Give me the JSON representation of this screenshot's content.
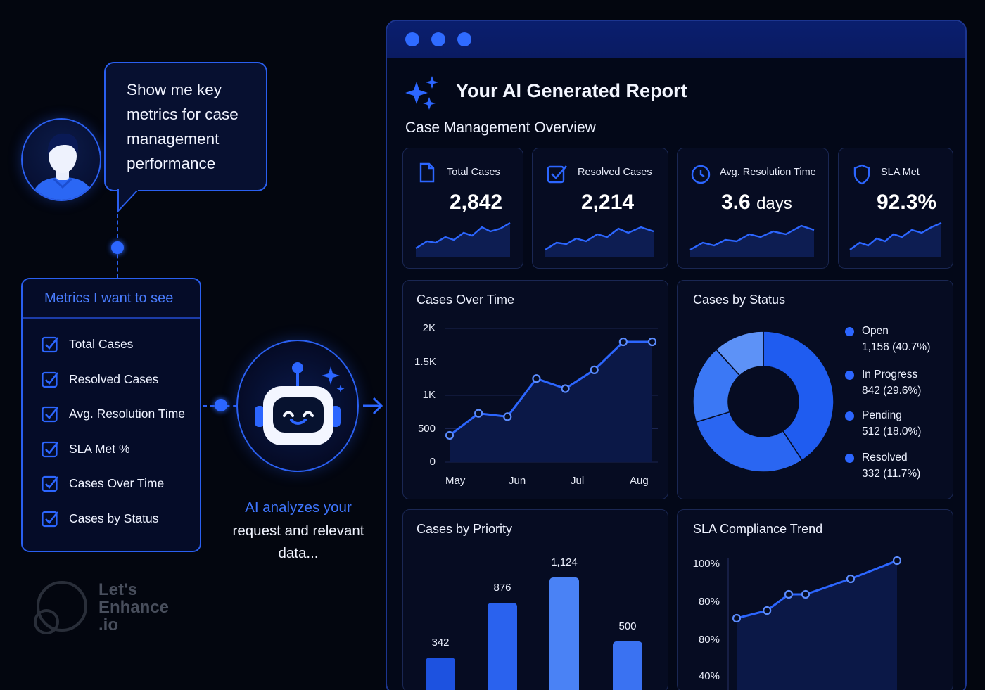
{
  "prompt": {
    "lines": [
      "Show me key",
      "metrics for case",
      "management",
      "performance"
    ]
  },
  "metrics_box": {
    "title": "Metrics I want to see",
    "items": [
      "Total Cases",
      "Resolved Cases",
      "Avg. Resolution Time",
      "SLA Met %",
      "Cases Over Time",
      "Cases by Status"
    ]
  },
  "ai": {
    "highlight": "AI analyzes your",
    "rest_1": "request and relevant",
    "rest_2": "data..."
  },
  "watermark": {
    "line1": "Let's",
    "line2": "Enhance",
    "line3": ".io"
  },
  "report": {
    "title": "Your AI Generated Report",
    "subtitle": "Case Management Overview",
    "kpis": [
      {
        "label": "Total Cases",
        "value": "2,842",
        "unit": "",
        "icon": "document-icon"
      },
      {
        "label": "Resolved Cases",
        "value": "2,214",
        "unit": "",
        "icon": "checkbox-icon"
      },
      {
        "label": "Avg. Resolution Time",
        "value": "3.6",
        "unit": "days",
        "icon": "clock-icon"
      },
      {
        "label": "SLA Met",
        "value": "92.3%",
        "unit": "",
        "icon": "shield-icon"
      }
    ],
    "panels": {
      "cases_over_time": "Cases Over Time",
      "cases_by_status": "Cases by Status",
      "cases_by_priority": "Cases by Priority",
      "sla_trend": "SLA Compliance Trend"
    }
  },
  "colors": {
    "accent": "#2c66ff",
    "background": "#03060f",
    "panel": "#060c22"
  },
  "chart_data": [
    {
      "type": "line",
      "title": "Cases Over Time",
      "x_ticks": [
        "May",
        "Jun",
        "Jul",
        "Aug"
      ],
      "y_ticks": [
        "0",
        "500",
        "1K",
        "1.5K",
        "2K"
      ],
      "ylim": [
        0,
        2000
      ],
      "x": [
        0,
        1,
        2,
        3,
        4,
        5,
        6,
        7
      ],
      "values": [
        400,
        730,
        680,
        1250,
        1100,
        1380,
        1800,
        1800
      ],
      "grid": true
    },
    {
      "type": "pie",
      "title": "Cases by Status",
      "legend_position": "right",
      "slices": [
        {
          "name": "Open",
          "label": "1,156 (40.7%)",
          "value": 40.7,
          "color": "#1f5cf0"
        },
        {
          "name": "In Progress",
          "label": "842 (29.6%)",
          "value": 29.6,
          "color": "#2a66f2"
        },
        {
          "name": "Pending",
          "label": "512 (18.0%)",
          "value": 18.0,
          "color": "#3b78f5"
        },
        {
          "name": "Resolved",
          "label": "332 (11.7%)",
          "value": 11.7,
          "color": "#5d92f7"
        }
      ]
    },
    {
      "type": "bar",
      "title": "Cases by Priority",
      "values": [
        342,
        876,
        1124,
        500
      ],
      "labels": [
        "342",
        "876",
        "1,124",
        "500"
      ]
    },
    {
      "type": "line",
      "title": "SLA Compliance Trend",
      "y_ticks": [
        "100%",
        "80%",
        "80%",
        "40%"
      ],
      "values": [
        0.18,
        0.29,
        0.52,
        0.52,
        0.74,
        1.0
      ],
      "grid": false
    }
  ]
}
